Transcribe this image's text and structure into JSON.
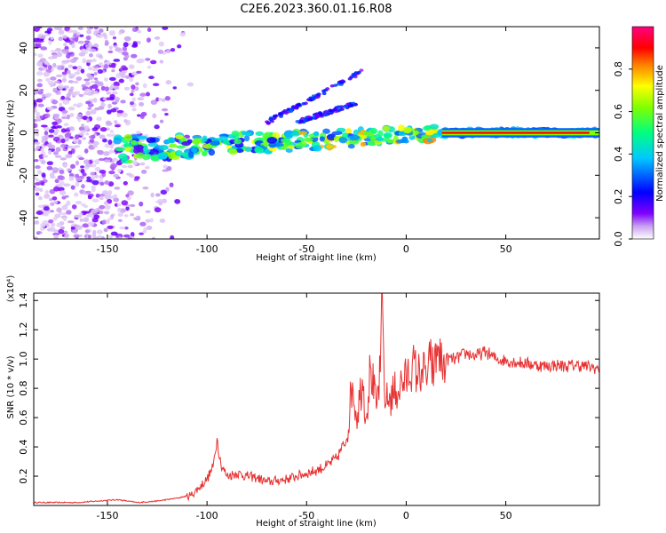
{
  "figure": {
    "title": "C2E6.2023.360.01.16.R08"
  },
  "chart_data": [
    {
      "type": "heatmap",
      "title": "C2E6.2023.360.01.16.R08",
      "xlabel": "Height of straight line (km)",
      "ylabel": "Frequency (Hz)",
      "xlim": [
        -187,
        97
      ],
      "ylim": [
        -50,
        50
      ],
      "xticks": [
        -150,
        -100,
        -50,
        0,
        50
      ],
      "yticks": [
        -40,
        -20,
        0,
        20,
        40
      ],
      "colorbar": {
        "label": "Normalized spectral amplitude",
        "range": [
          0.0,
          1.0
        ],
        "ticks": [
          0.0,
          0.2,
          0.4,
          0.6,
          0.8
        ],
        "colors": [
          "#ffffff",
          "#c8a0f0",
          "#8000ff",
          "#0000ff",
          "#00c8ff",
          "#00ff80",
          "#80ff00",
          "#ffff00",
          "#ff8000",
          "#ff0000",
          "#ff0080"
        ]
      },
      "features": [
        {
          "name": "main-echo-trace",
          "x_range_km": [
            -145,
            97
          ],
          "freq_start_hz": -8,
          "freq_end_hz": 0
        },
        {
          "name": "upper-branch-1",
          "x_range_km": [
            -70,
            -22
          ],
          "freq_start_hz": 5,
          "freq_end_hz": 29
        },
        {
          "name": "upper-branch-2",
          "x_range_km": [
            -55,
            -25
          ],
          "freq_start_hz": 5,
          "freq_end_hz": 14
        },
        {
          "name": "low-height-noise",
          "x_range_km": [
            -187,
            -115
          ],
          "freq_start_hz": -50,
          "freq_end_hz": 50
        }
      ]
    },
    {
      "type": "line",
      "xlabel": "Height of straight line (km)",
      "ylabel": "SNR (10 * v/v)",
      "y_scale_label": "(x10⁴)",
      "xlim": [
        -187,
        97
      ],
      "ylim": [
        0,
        1.45
      ],
      "xticks": [
        -150,
        -100,
        -50,
        0,
        50
      ],
      "yticks": [
        0.2,
        0.4,
        0.6,
        0.8,
        1.0,
        1.2,
        1.4
      ],
      "ytick_labels": [
        "0.2",
        "0.4",
        "0.6",
        "0.8",
        "1.0",
        "1.2",
        "1.4"
      ],
      "color": "#e83030",
      "series": [
        {
          "name": "SNR",
          "x": [
            -187,
            -175,
            -165,
            -155,
            -145,
            -135,
            -125,
            -115,
            -108,
            -104,
            -100,
            -97,
            -95,
            -93,
            -90,
            -85,
            -80,
            -75,
            -70,
            -65,
            -60,
            -55,
            -50,
            -45,
            -40,
            -35,
            -30,
            -27,
            -25,
            -22,
            -20,
            -18,
            -15,
            -13,
            -12,
            -11,
            -10,
            -8,
            -5,
            -3,
            0,
            3,
            6,
            8,
            10,
            12,
            14,
            16,
            18,
            20,
            25,
            30,
            35,
            40,
            45,
            50,
            55,
            60,
            65,
            70,
            75,
            80,
            85,
            90,
            95,
            97
          ],
          "y": [
            0.02,
            0.02,
            0.02,
            0.03,
            0.04,
            0.02,
            0.03,
            0.05,
            0.07,
            0.12,
            0.18,
            0.26,
            0.46,
            0.28,
            0.2,
            0.22,
            0.2,
            0.19,
            0.16,
            0.17,
            0.18,
            0.2,
            0.22,
            0.24,
            0.27,
            0.32,
            0.45,
            0.84,
            0.6,
            0.86,
            0.6,
            0.95,
            0.66,
            0.91,
            1.46,
            0.8,
            0.7,
            0.74,
            0.78,
            0.82,
            0.86,
            0.96,
            0.89,
            0.93,
            0.87,
            0.99,
            0.91,
            1.09,
            0.94,
            1.0,
            1.0,
            1.04,
            1.02,
            1.05,
            1.0,
            0.99,
            0.98,
            0.97,
            0.96,
            0.95,
            0.96,
            0.95,
            0.96,
            0.95,
            0.94,
            0.93
          ]
        }
      ]
    }
  ]
}
